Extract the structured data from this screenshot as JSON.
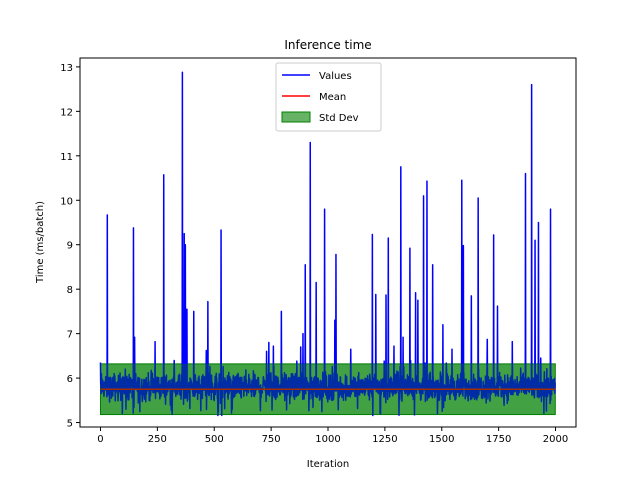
{
  "chart_data": {
    "type": "line",
    "title": "Inference time",
    "xlabel": "Iteration",
    "ylabel": "Time (ms/batch)",
    "xlim": [
      -90,
      2090
    ],
    "ylim": [
      4.9,
      13.2
    ],
    "xticks": [
      0,
      250,
      500,
      750,
      1000,
      1250,
      1500,
      1750,
      2000
    ],
    "yticks": [
      5,
      6,
      7,
      8,
      9,
      10,
      11,
      12,
      13
    ],
    "grid": false,
    "legend_position": "top-center",
    "n_points": 2000,
    "mean": 5.75,
    "std_band": [
      5.18,
      6.32
    ],
    "baseline": {
      "typical_low": 5.35,
      "typical_high": 6.25,
      "min": 5.15,
      "max": 6.4
    },
    "spikes": [
      {
        "x": 30,
        "y": 9.67
      },
      {
        "x": 145,
        "y": 9.38
      },
      {
        "x": 150,
        "y": 6.92
      },
      {
        "x": 240,
        "y": 6.82
      },
      {
        "x": 278,
        "y": 10.57
      },
      {
        "x": 360,
        "y": 12.88
      },
      {
        "x": 368,
        "y": 9.25
      },
      {
        "x": 373,
        "y": 9.0
      },
      {
        "x": 380,
        "y": 7.55
      },
      {
        "x": 410,
        "y": 7.5
      },
      {
        "x": 465,
        "y": 6.62
      },
      {
        "x": 472,
        "y": 7.72
      },
      {
        "x": 530,
        "y": 9.33
      },
      {
        "x": 730,
        "y": 6.6
      },
      {
        "x": 740,
        "y": 6.8
      },
      {
        "x": 760,
        "y": 6.72
      },
      {
        "x": 795,
        "y": 7.5
      },
      {
        "x": 880,
        "y": 6.7
      },
      {
        "x": 890,
        "y": 7.0
      },
      {
        "x": 900,
        "y": 8.55
      },
      {
        "x": 922,
        "y": 11.3
      },
      {
        "x": 948,
        "y": 8.15
      },
      {
        "x": 985,
        "y": 9.8
      },
      {
        "x": 1030,
        "y": 7.3
      },
      {
        "x": 1035,
        "y": 8.78
      },
      {
        "x": 1100,
        "y": 6.65
      },
      {
        "x": 1195,
        "y": 9.23
      },
      {
        "x": 1210,
        "y": 7.88
      },
      {
        "x": 1255,
        "y": 7.87
      },
      {
        "x": 1265,
        "y": 9.15
      },
      {
        "x": 1290,
        "y": 6.72
      },
      {
        "x": 1320,
        "y": 10.75
      },
      {
        "x": 1330,
        "y": 6.92
      },
      {
        "x": 1360,
        "y": 8.92
      },
      {
        "x": 1385,
        "y": 7.92
      },
      {
        "x": 1395,
        "y": 7.75
      },
      {
        "x": 1420,
        "y": 10.1
      },
      {
        "x": 1435,
        "y": 10.43
      },
      {
        "x": 1460,
        "y": 8.55
      },
      {
        "x": 1505,
        "y": 7.2
      },
      {
        "x": 1545,
        "y": 6.65
      },
      {
        "x": 1588,
        "y": 10.45
      },
      {
        "x": 1595,
        "y": 8.98
      },
      {
        "x": 1630,
        "y": 7.85
      },
      {
        "x": 1660,
        "y": 10.05
      },
      {
        "x": 1700,
        "y": 6.87
      },
      {
        "x": 1728,
        "y": 9.22
      },
      {
        "x": 1745,
        "y": 7.62
      },
      {
        "x": 1810,
        "y": 6.82
      },
      {
        "x": 1868,
        "y": 10.6
      },
      {
        "x": 1895,
        "y": 12.6
      },
      {
        "x": 1910,
        "y": 9.1
      },
      {
        "x": 1925,
        "y": 9.5
      },
      {
        "x": 1935,
        "y": 6.45
      },
      {
        "x": 1978,
        "y": 9.8
      }
    ],
    "series": [
      {
        "name": "Values",
        "color": "#0000ff",
        "kind": "line"
      },
      {
        "name": "Mean",
        "color": "#ff0000",
        "kind": "line"
      },
      {
        "name": "Std Dev",
        "color": "#008000",
        "kind": "band",
        "alpha": 0.6
      }
    ]
  }
}
